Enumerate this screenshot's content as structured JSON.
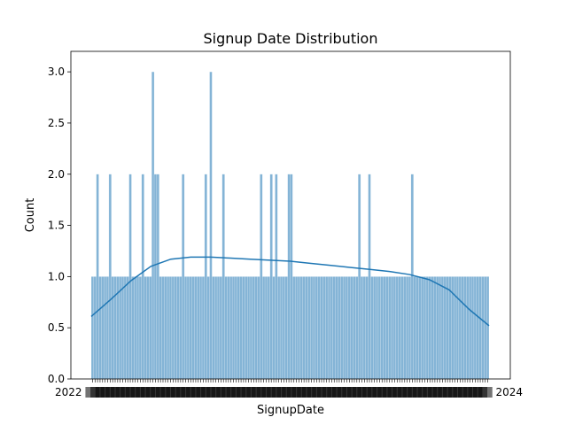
{
  "chart_data": {
    "type": "bar",
    "title": "Signup Date Distribution",
    "xlabel": "SignupDate",
    "ylabel": "Count",
    "ylim": [
      0,
      3.2
    ],
    "yticks": [
      0.0,
      0.5,
      1.0,
      1.5,
      2.0,
      2.5,
      3.0
    ],
    "ytick_labels": [
      "0.0",
      "0.5",
      "1.0",
      "1.5",
      "2.0",
      "2.5",
      "3.0"
    ],
    "xtick_label_visible_start": "2022",
    "xtick_label_visible_end": "2024",
    "grid": false,
    "bar_color": "#1f77b4",
    "line_color": "#1f77b4",
    "bin_count": 158,
    "series": [
      {
        "values": [
          1,
          1,
          2,
          1,
          1,
          1,
          1,
          2,
          1,
          1,
          1,
          1,
          1,
          1,
          1,
          2,
          1,
          1,
          1,
          1,
          2,
          1,
          1,
          1,
          3,
          2,
          2,
          1,
          1,
          1,
          1,
          1,
          1,
          1,
          1,
          1,
          2,
          1,
          1,
          1,
          1,
          1,
          1,
          1,
          1,
          2,
          1,
          3,
          1,
          1,
          1,
          1,
          2,
          1,
          1,
          1,
          1,
          1,
          1,
          1,
          1,
          1,
          1,
          1,
          1,
          1,
          1,
          2,
          1,
          1,
          1,
          2,
          1,
          2,
          1,
          1,
          1,
          1,
          2,
          2,
          1,
          1,
          1,
          1,
          1,
          1,
          1,
          1,
          1,
          1,
          1,
          1,
          1,
          1,
          1,
          1,
          1,
          1,
          1,
          1,
          1,
          1,
          1,
          1,
          1,
          1,
          2,
          1,
          1,
          1,
          2,
          1,
          1,
          1,
          1,
          1,
          1,
          1,
          1,
          1,
          1,
          1,
          1,
          1,
          1,
          1,
          1,
          2,
          1,
          1,
          1,
          1,
          1,
          1,
          1,
          1,
          1,
          1,
          1,
          1,
          1,
          1,
          1,
          1,
          1,
          1,
          1,
          1,
          1,
          1,
          1,
          1,
          1,
          1,
          1,
          1,
          1,
          1
        ]
      }
    ],
    "kde": [
      0.61,
      0.78,
      0.96,
      1.1,
      1.17,
      1.19,
      1.19,
      1.18,
      1.17,
      1.16,
      1.15,
      1.13,
      1.11,
      1.09,
      1.07,
      1.05,
      1.02,
      0.97,
      0.87,
      0.68,
      0.52
    ]
  }
}
